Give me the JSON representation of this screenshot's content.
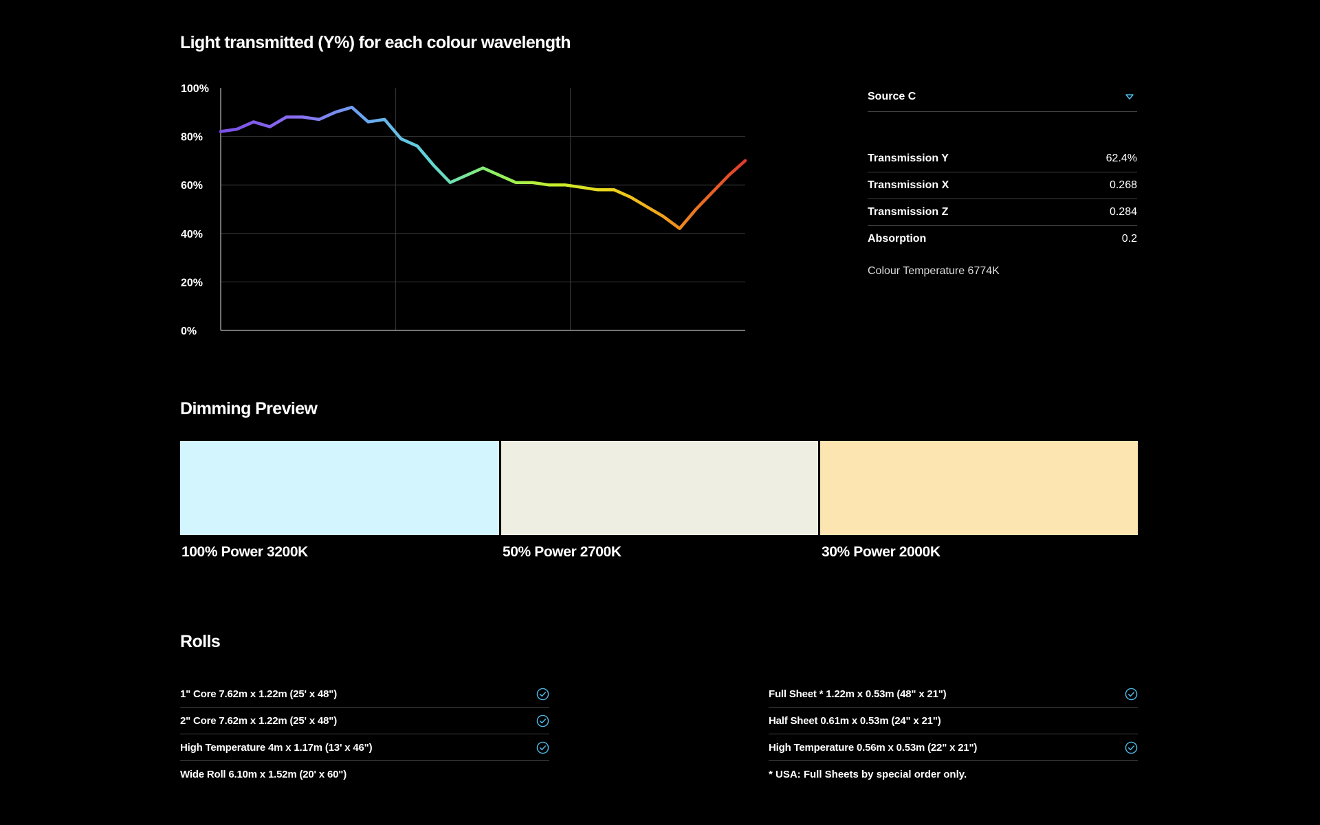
{
  "chart_data": {
    "type": "line",
    "title": "Light transmitted (Y%) for each colour wavelength",
    "xlabel": "",
    "ylabel": "",
    "ylim": [
      0,
      100
    ],
    "yticks": [
      "100%",
      "80%",
      "60%",
      "40%",
      "20%",
      "0%"
    ],
    "yticks_values": [
      100,
      80,
      60,
      40,
      20,
      0
    ],
    "grid": true,
    "x": [
      380,
      390,
      400,
      410,
      420,
      430,
      440,
      450,
      460,
      470,
      480,
      490,
      500,
      510,
      520,
      530,
      540,
      550,
      560,
      570,
      580,
      590,
      600,
      610,
      620,
      630,
      640,
      650,
      660,
      670,
      680,
      690,
      700
    ],
    "series": [
      {
        "values": [
          82,
          83,
          86,
          84,
          88,
          88,
          87,
          90,
          92,
          86,
          87,
          79,
          76,
          68,
          61,
          64,
          67,
          64,
          61,
          61,
          60,
          60,
          59,
          58,
          58,
          55,
          51,
          47,
          42,
          50,
          57,
          64,
          70
        ]
      }
    ]
  },
  "source": {
    "selected": "Source C",
    "chevron_icon": "chevron-down-icon"
  },
  "stats": [
    {
      "label": "Transmission Y",
      "value": "62.4%"
    },
    {
      "label": "Transmission X",
      "value": "0.268"
    },
    {
      "label": "Transmission Z",
      "value": "0.284"
    },
    {
      "label": "Absorption",
      "value": "0.2"
    }
  ],
  "colour_temperature": "Colour Temperature 6774K",
  "dimming": {
    "title": "Dimming Preview",
    "swatches": [
      {
        "label": "100% Power 3200K",
        "color": "#d3f5fe"
      },
      {
        "label": "50% Power 2700K",
        "color": "#eeeee3"
      },
      {
        "label": "30% Power 2000K",
        "color": "#fde5b2"
      }
    ]
  },
  "rolls": {
    "title": "Rolls",
    "left": [
      {
        "label": "1\" Core 7.62m x 1.22m (25' x 48\")",
        "available": true
      },
      {
        "label": "2\" Core 7.62m x 1.22m (25' x 48\")",
        "available": true
      },
      {
        "label": "High Temperature 4m x 1.17m (13' x 46\")",
        "available": true
      },
      {
        "label": "Wide Roll 6.10m x 1.52m (20' x 60\")",
        "available": false
      }
    ],
    "right": [
      {
        "label": "Full Sheet * 1.22m x 0.53m (48\" x 21\")",
        "available": true
      },
      {
        "label": "Half Sheet 0.61m x 0.53m (24\" x 21\")",
        "available": false
      },
      {
        "label": "High Temperature 0.56m x 0.53m (22\" x 21\")",
        "available": true
      }
    ],
    "note": "* USA: Full Sheets by special order only."
  },
  "colors": {
    "background": "#000000",
    "accent": "#4fb8e6",
    "divider": "#444444",
    "gridline": "#3a3a3a"
  }
}
